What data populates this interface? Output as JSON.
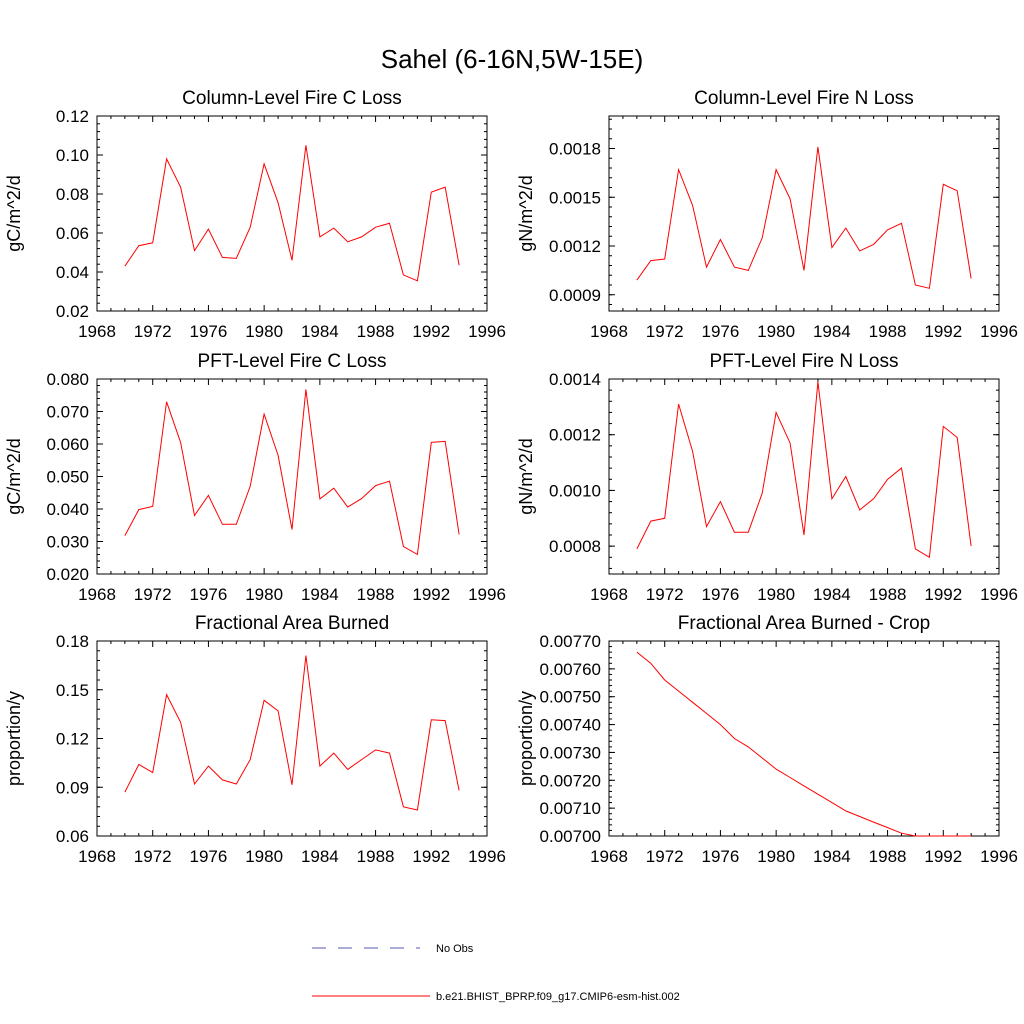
{
  "title": "Sahel (6-16N,5W-15E)",
  "colors": {
    "model": "#ff0000",
    "obs": "#5a5ab4"
  },
  "legend": [
    {
      "label": "No Obs",
      "style": "dashed",
      "color": "#5a5ab4"
    },
    {
      "label": "b.e21.BHIST_BPRP.f09_g17.CMIP6-esm-hist.002",
      "style": "solid",
      "color": "#ff0000"
    }
  ],
  "chart_data": [
    {
      "type": "line",
      "title": "Column-Level Fire C Loss",
      "ylabel": "gC/m^2/d",
      "xlim": [
        1968,
        1996
      ],
      "xticks": [
        "1968",
        "1972",
        "1976",
        "1980",
        "1984",
        "1988",
        "1992",
        "1996"
      ],
      "ylim": [
        0.02,
        0.12
      ],
      "yticks": [
        "0.02",
        "0.04",
        "0.06",
        "0.08",
        "0.10",
        "0.12"
      ],
      "x": [
        1970,
        1971,
        1972,
        1973,
        1974,
        1975,
        1976,
        1977,
        1978,
        1979,
        1980,
        1981,
        1982,
        1983,
        1984,
        1985,
        1986,
        1987,
        1988,
        1989,
        1990,
        1991,
        1992,
        1993,
        1994
      ],
      "series": [
        {
          "name": "b.e21.BHIST_BPRP.f09_g17.CMIP6-esm-hist.002",
          "values": [
            0.043,
            0.0535,
            0.055,
            0.098,
            0.0835,
            0.051,
            0.062,
            0.0475,
            0.047,
            0.063,
            0.0955,
            0.0755,
            0.046,
            0.105,
            0.058,
            0.0625,
            0.0555,
            0.058,
            0.063,
            0.065,
            0.0385,
            0.0355,
            0.081,
            0.0835,
            0.0435
          ]
        }
      ]
    },
    {
      "type": "line",
      "title": "Column-Level Fire N Loss",
      "ylabel": "gN/m^2/d",
      "xlim": [
        1968,
        1996
      ],
      "xticks": [
        "1968",
        "1972",
        "1976",
        "1980",
        "1984",
        "1988",
        "1992",
        "1996"
      ],
      "ylim": [
        0.0008,
        0.002
      ],
      "yticks": [
        "0.0009",
        "0.0012",
        "0.0015",
        "0.0018"
      ],
      "x": [
        1970,
        1971,
        1972,
        1973,
        1974,
        1975,
        1976,
        1977,
        1978,
        1979,
        1980,
        1981,
        1982,
        1983,
        1984,
        1985,
        1986,
        1987,
        1988,
        1989,
        1990,
        1991,
        1992,
        1993,
        1994
      ],
      "series": [
        {
          "name": "b.e21.BHIST_BPRP.f09_g17.CMIP6-esm-hist.002",
          "values": [
            0.00099,
            0.00111,
            0.00112,
            0.00167,
            0.00145,
            0.00107,
            0.00124,
            0.00107,
            0.00105,
            0.00125,
            0.00167,
            0.00149,
            0.00105,
            0.00181,
            0.00119,
            0.00131,
            0.00117,
            0.00121,
            0.0013,
            0.00134,
            0.00096,
            0.00094,
            0.00158,
            0.00154,
            0.001
          ]
        }
      ]
    },
    {
      "type": "line",
      "title": "PFT-Level Fire C Loss",
      "ylabel": "gC/m^2/d",
      "xlim": [
        1968,
        1996
      ],
      "xticks": [
        "1968",
        "1972",
        "1976",
        "1980",
        "1984",
        "1988",
        "1992",
        "1996"
      ],
      "ylim": [
        0.02,
        0.08
      ],
      "yticks": [
        "0.020",
        "0.030",
        "0.040",
        "0.050",
        "0.060",
        "0.070",
        "0.080"
      ],
      "x": [
        1970,
        1971,
        1972,
        1973,
        1974,
        1975,
        1976,
        1977,
        1978,
        1979,
        1980,
        1981,
        1982,
        1983,
        1984,
        1985,
        1986,
        1987,
        1988,
        1989,
        1990,
        1991,
        1992,
        1993,
        1994
      ],
      "series": [
        {
          "name": "b.e21.BHIST_BPRP.f09_g17.CMIP6-esm-hist.002",
          "values": [
            0.0318,
            0.0398,
            0.0408,
            0.073,
            0.0605,
            0.038,
            0.0442,
            0.0353,
            0.0353,
            0.047,
            0.0692,
            0.0565,
            0.0337,
            0.0768,
            0.0431,
            0.0464,
            0.0406,
            0.0432,
            0.0472,
            0.0486,
            0.0285,
            0.026,
            0.0605,
            0.0608,
            0.0322
          ]
        }
      ]
    },
    {
      "type": "line",
      "title": "PFT-Level Fire N Loss",
      "ylabel": "gN/m^2/d",
      "xlim": [
        1968,
        1996
      ],
      "xticks": [
        "1968",
        "1972",
        "1976",
        "1980",
        "1984",
        "1988",
        "1992",
        "1996"
      ],
      "ylim": [
        0.0007,
        0.0014
      ],
      "yticks": [
        "0.0008",
        "0.0010",
        "0.0012",
        "0.0014"
      ],
      "x": [
        1970,
        1971,
        1972,
        1973,
        1974,
        1975,
        1976,
        1977,
        1978,
        1979,
        1980,
        1981,
        1982,
        1983,
        1984,
        1985,
        1986,
        1987,
        1988,
        1989,
        1990,
        1991,
        1992,
        1993,
        1994
      ],
      "series": [
        {
          "name": "b.e21.BHIST_BPRP.f09_g17.CMIP6-esm-hist.002",
          "values": [
            0.00079,
            0.00089,
            0.0009,
            0.00131,
            0.00114,
            0.00087,
            0.00096,
            0.00085,
            0.00085,
            0.00099,
            0.00128,
            0.00117,
            0.00084,
            0.00139,
            0.00097,
            0.00105,
            0.00093,
            0.00097,
            0.00104,
            0.00108,
            0.00079,
            0.00076,
            0.00123,
            0.00119,
            0.0008
          ]
        }
      ]
    },
    {
      "type": "line",
      "title": "Fractional Area Burned",
      "ylabel": "proportion/y",
      "xlim": [
        1968,
        1996
      ],
      "xticks": [
        "1968",
        "1972",
        "1976",
        "1980",
        "1984",
        "1988",
        "1992",
        "1996"
      ],
      "ylim": [
        0.06,
        0.18
      ],
      "yticks": [
        "0.06",
        "0.09",
        "0.12",
        "0.15",
        "0.18"
      ],
      "x": [
        1970,
        1971,
        1972,
        1973,
        1974,
        1975,
        1976,
        1977,
        1978,
        1979,
        1980,
        1981,
        1982,
        1983,
        1984,
        1985,
        1986,
        1987,
        1988,
        1989,
        1990,
        1991,
        1992,
        1993,
        1994
      ],
      "series": [
        {
          "name": "b.e21.BHIST_BPRP.f09_g17.CMIP6-esm-hist.002",
          "values": [
            0.087,
            0.104,
            0.099,
            0.147,
            0.13,
            0.092,
            0.103,
            0.0945,
            0.092,
            0.107,
            0.1435,
            0.137,
            0.0915,
            0.171,
            0.103,
            0.111,
            0.101,
            0.107,
            0.113,
            0.111,
            0.078,
            0.076,
            0.1315,
            0.131,
            0.088
          ]
        }
      ]
    },
    {
      "type": "line",
      "title": "Fractional Area Burned - Crop",
      "ylabel": "proportion/y",
      "xlim": [
        1968,
        1996
      ],
      "xticks": [
        "1968",
        "1972",
        "1976",
        "1980",
        "1984",
        "1988",
        "1992",
        "1996"
      ],
      "ylim": [
        0.007,
        0.0077
      ],
      "yticks": [
        "0.00700",
        "0.00710",
        "0.00720",
        "0.00730",
        "0.00740",
        "0.00750",
        "0.00760",
        "0.00770"
      ],
      "x": [
        1970,
        1971,
        1972,
        1973,
        1974,
        1975,
        1976,
        1977,
        1978,
        1979,
        1980,
        1981,
        1982,
        1983,
        1984,
        1985,
        1986,
        1987,
        1988,
        1989,
        1990,
        1991,
        1992,
        1993,
        1994
      ],
      "series": [
        {
          "name": "b.e21.BHIST_BPRP.f09_g17.CMIP6-esm-hist.002",
          "values": [
            0.00766,
            0.00762,
            0.00756,
            0.00752,
            0.00748,
            0.00744,
            0.0074,
            0.00735,
            0.00732,
            0.00728,
            0.00724,
            0.00721,
            0.00718,
            0.00715,
            0.00712,
            0.00709,
            0.00707,
            0.00705,
            0.00703,
            0.00701,
            0.007,
            0.007,
            0.007,
            0.007,
            0.007
          ]
        }
      ]
    }
  ]
}
